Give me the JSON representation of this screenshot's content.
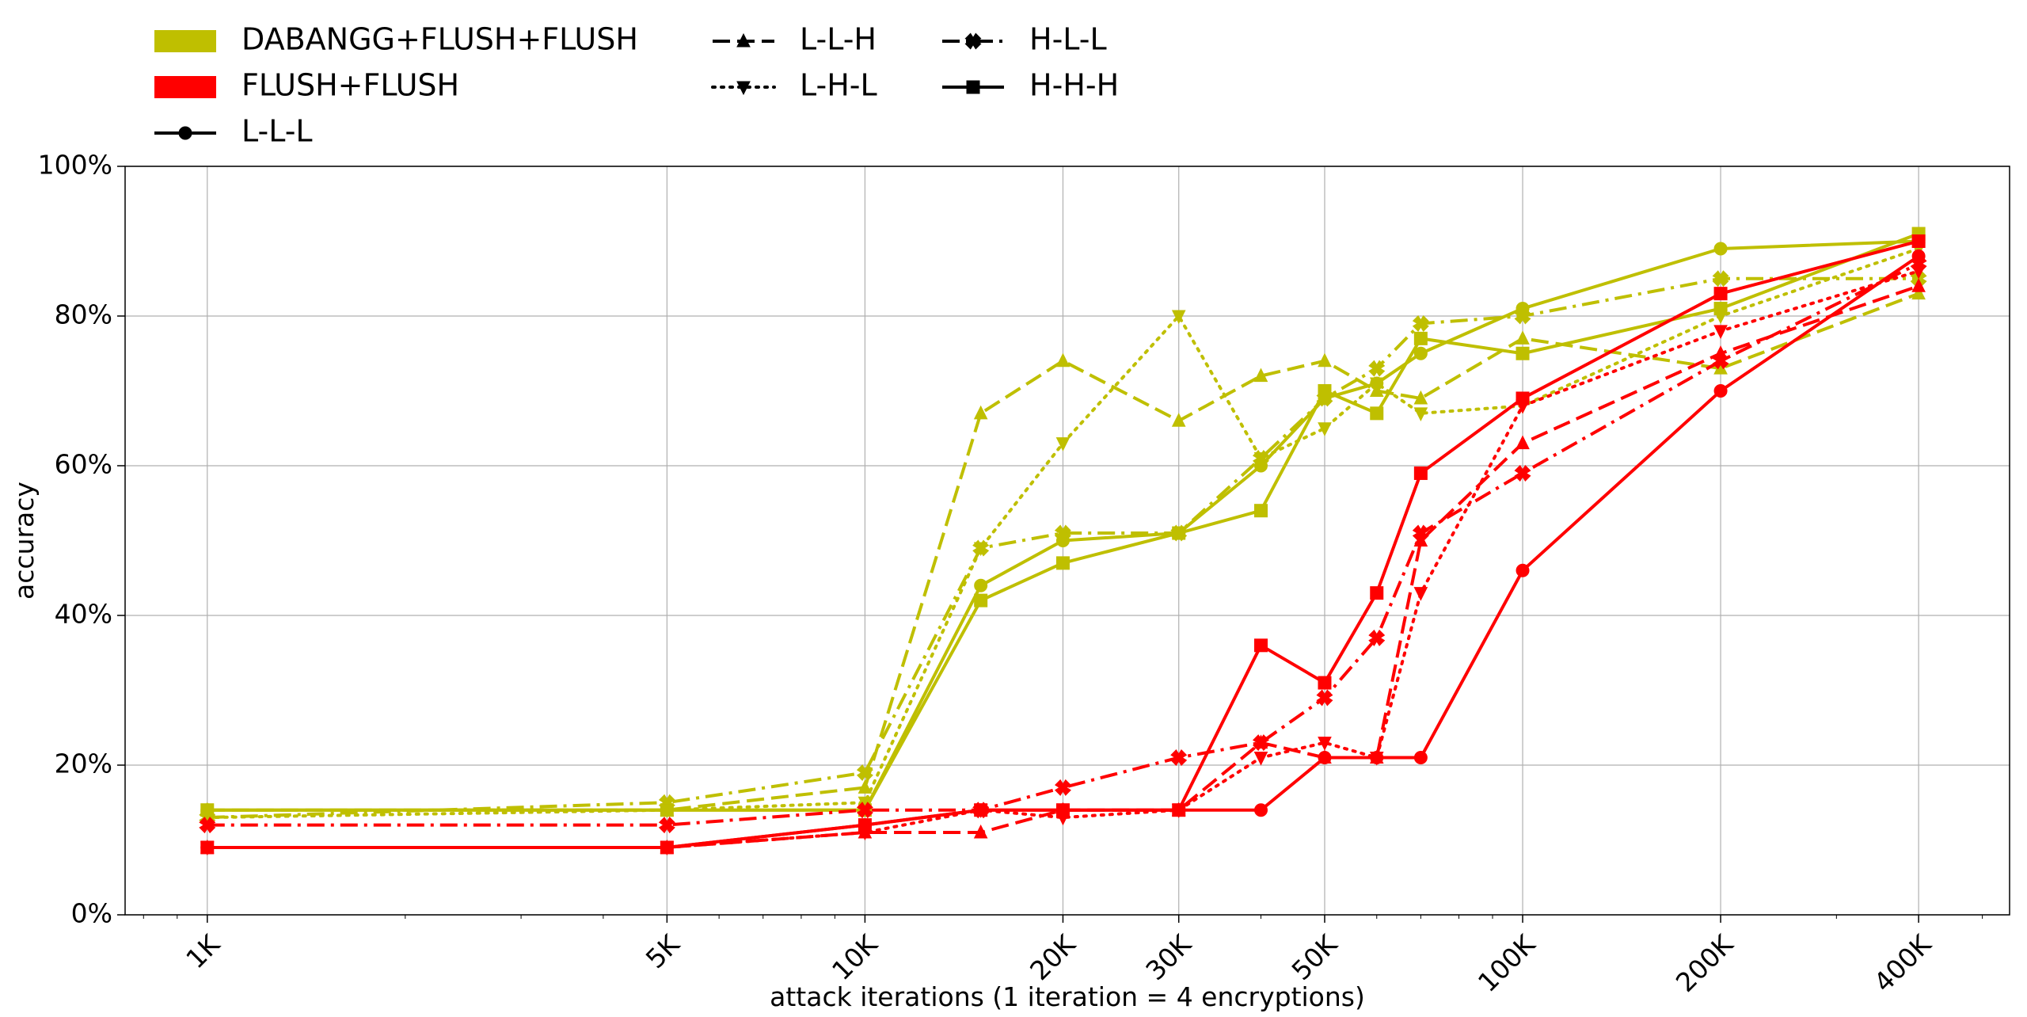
{
  "chart_data": {
    "type": "line",
    "title": "",
    "xlabel": "attack iterations (1 iteration = 4 encryptions)",
    "ylabel": "accuracy",
    "x_scale": "log",
    "x": [
      1000,
      5000,
      10000,
      15000,
      20000,
      30000,
      40000,
      50000,
      60000,
      70000,
      100000,
      200000,
      400000
    ],
    "x_ticks": [
      {
        "value": 1000,
        "label": "1K"
      },
      {
        "value": 5000,
        "label": "5K"
      },
      {
        "value": 10000,
        "label": "10K"
      },
      {
        "value": 20000,
        "label": "20K"
      },
      {
        "value": 30000,
        "label": "30K"
      },
      {
        "value": 50000,
        "label": "50K"
      },
      {
        "value": 100000,
        "label": "100K"
      },
      {
        "value": 200000,
        "label": "200K"
      },
      {
        "value": 400000,
        "label": "400K"
      }
    ],
    "y_ticks": [
      {
        "value": 0,
        "label": "0%"
      },
      {
        "value": 20,
        "label": "20%"
      },
      {
        "value": 40,
        "label": "40%"
      },
      {
        "value": 60,
        "label": "60%"
      },
      {
        "value": 80,
        "label": "80%"
      },
      {
        "value": 100,
        "label": "100%"
      }
    ],
    "xlim": [
      750,
      550000
    ],
    "ylim": [
      0,
      100
    ],
    "grid": true,
    "legend_position": "top-left (above plot)",
    "legend": {
      "attack_labels": [
        {
          "label": "DABANGG+FLUSH+FLUSH",
          "color": "#bfbf00"
        },
        {
          "label": "FLUSH+FLUSH",
          "color": "#ff0000"
        }
      ],
      "config_labels": [
        {
          "label": "L-L-L",
          "dash": "solid",
          "marker": "circle"
        },
        {
          "label": "L-L-H",
          "dash": "dashed",
          "marker": "triangle-up"
        },
        {
          "label": "L-H-L",
          "dash": "dotted",
          "marker": "triangle-down"
        },
        {
          "label": "H-L-L",
          "dash": "dashdot",
          "marker": "x"
        },
        {
          "label": "H-H-H",
          "dash": "solid",
          "marker": "square"
        }
      ]
    },
    "series": [
      {
        "attack": "DABANGG+FLUSH+FLUSH",
        "config": "L-L-L",
        "color": "#bfbf00",
        "dash": "solid",
        "marker": "circle",
        "values": [
          14,
          14,
          14,
          44,
          50,
          51,
          60,
          69,
          71,
          75,
          81,
          89,
          90
        ]
      },
      {
        "attack": "DABANGG+FLUSH+FLUSH",
        "config": "L-L-H",
        "color": "#bfbf00",
        "dash": "dashed",
        "marker": "triangle-up",
        "values": [
          14,
          14,
          17,
          67,
          74,
          66,
          72,
          74,
          70,
          69,
          77,
          73,
          83
        ]
      },
      {
        "attack": "DABANGG+FLUSH+FLUSH",
        "config": "L-H-L",
        "color": "#bfbf00",
        "dash": "dotted",
        "marker": "triangle-down",
        "values": [
          13,
          14,
          15,
          49,
          63,
          80,
          61,
          65,
          71,
          67,
          68,
          80,
          89
        ]
      },
      {
        "attack": "DABANGG+FLUSH+FLUSH",
        "config": "H-L-L",
        "color": "#bfbf00",
        "dash": "dashdot",
        "marker": "x",
        "values": [
          13,
          15,
          19,
          49,
          51,
          51,
          61,
          69,
          73,
          79,
          80,
          85,
          85
        ]
      },
      {
        "attack": "DABANGG+FLUSH+FLUSH",
        "config": "H-H-H",
        "color": "#bfbf00",
        "dash": "solid",
        "marker": "square",
        "values": [
          14,
          14,
          14,
          42,
          47,
          51,
          54,
          70,
          67,
          77,
          75,
          81,
          91
        ]
      },
      {
        "attack": "FLUSH+FLUSH",
        "config": "L-L-L",
        "color": "#ff0000",
        "dash": "solid",
        "marker": "circle",
        "values": [
          9,
          9,
          12,
          14,
          14,
          14,
          14,
          21,
          21,
          21,
          46,
          70,
          88
        ]
      },
      {
        "attack": "FLUSH+FLUSH",
        "config": "L-L-H",
        "color": "#ff0000",
        "dash": "dashed",
        "marker": "triangle-up",
        "values": [
          9,
          9,
          11,
          11,
          14,
          14,
          23,
          21,
          21,
          50,
          63,
          75,
          84
        ]
      },
      {
        "attack": "FLUSH+FLUSH",
        "config": "L-H-L",
        "color": "#ff0000",
        "dash": "dotted",
        "marker": "triangle-down",
        "values": [
          9,
          9,
          11,
          14,
          13,
          14,
          21,
          23,
          21,
          43,
          68,
          78,
          86
        ]
      },
      {
        "attack": "FLUSH+FLUSH",
        "config": "H-L-L",
        "color": "#ff0000",
        "dash": "dashdot",
        "marker": "x",
        "values": [
          12,
          12,
          14,
          14,
          17,
          21,
          23,
          29,
          37,
          51,
          59,
          74,
          87
        ]
      },
      {
        "attack": "FLUSH+FLUSH",
        "config": "H-H-H",
        "color": "#ff0000",
        "dash": "solid",
        "marker": "square",
        "values": [
          9,
          9,
          12,
          14,
          14,
          14,
          36,
          31,
          43,
          59,
          69,
          83,
          90
        ]
      }
    ]
  }
}
